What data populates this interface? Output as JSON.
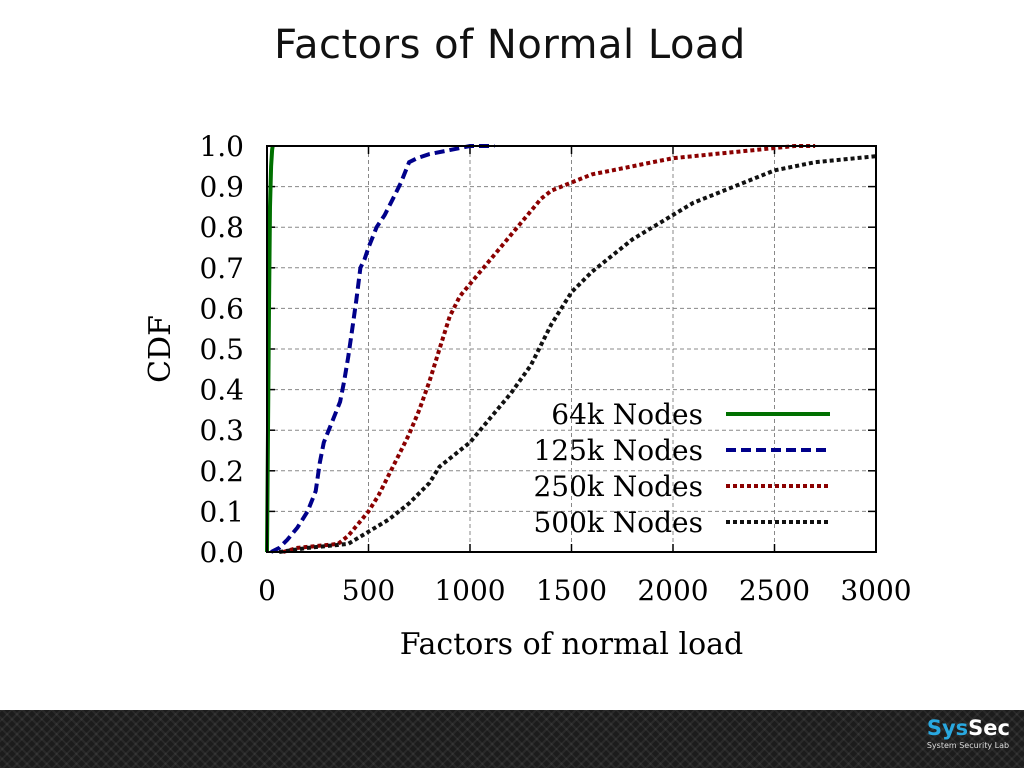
{
  "slide": {
    "title": "Factors of Normal Load"
  },
  "chart_data": {
    "type": "line",
    "title": "",
    "xlabel": "Factors of normal load",
    "ylabel": "CDF",
    "xlim": [
      0,
      3000
    ],
    "ylim": [
      0,
      1.0
    ],
    "x_ticks": [
      0,
      500,
      1000,
      1500,
      2000,
      2500,
      3000
    ],
    "x_tick_labels": [
      "0",
      "500",
      "1000",
      "1500",
      "2000",
      "2500",
      "3000"
    ],
    "y_ticks": [
      0.0,
      0.1,
      0.2,
      0.3,
      0.4,
      0.5,
      0.6,
      0.7,
      0.8,
      0.9,
      1.0
    ],
    "y_tick_labels": [
      "0.0",
      "0.1",
      "0.2",
      "0.3",
      "0.4",
      "0.5",
      "0.6",
      "0.7",
      "0.8",
      "0.9",
      "1.0"
    ],
    "grid": true,
    "legend_position": "bottom-right",
    "series": [
      {
        "name": "64k Nodes",
        "color": "#007000",
        "dash": "solid",
        "x": [
          0,
          5,
          10,
          15,
          20,
          25,
          28
        ],
        "y": [
          0,
          0.3,
          0.6,
          0.85,
          0.95,
          0.99,
          1.0
        ]
      },
      {
        "name": "125k Nodes",
        "color": "#00008b",
        "dash": "dashed",
        "x": [
          20,
          60,
          100,
          150,
          200,
          240,
          260,
          280,
          320,
          360,
          380,
          400,
          420,
          440,
          460,
          480,
          500,
          540,
          580,
          620,
          660,
          700,
          740,
          800,
          900,
          1000,
          1120
        ],
        "y": [
          0,
          0.01,
          0.03,
          0.06,
          0.1,
          0.15,
          0.22,
          0.27,
          0.32,
          0.37,
          0.42,
          0.48,
          0.55,
          0.62,
          0.7,
          0.72,
          0.75,
          0.8,
          0.83,
          0.87,
          0.91,
          0.96,
          0.97,
          0.98,
          0.99,
          1.0,
          1.0
        ]
      },
      {
        "name": "250k Nodes",
        "color": "#8b0000",
        "dash": "dotted",
        "x": [
          80,
          150,
          250,
          350,
          400,
          450,
          500,
          550,
          600,
          650,
          700,
          750,
          800,
          850,
          900,
          950,
          1000,
          1050,
          1100,
          1150,
          1200,
          1250,
          1300,
          1350,
          1400,
          1450,
          1500,
          1600,
          1700,
          1800,
          1900,
          2000,
          2100,
          2200,
          2300,
          2400,
          2500,
          2600,
          2700
        ],
        "y": [
          0,
          0.01,
          0.015,
          0.02,
          0.04,
          0.07,
          0.1,
          0.14,
          0.19,
          0.24,
          0.29,
          0.35,
          0.42,
          0.5,
          0.58,
          0.63,
          0.66,
          0.69,
          0.72,
          0.75,
          0.78,
          0.81,
          0.84,
          0.87,
          0.89,
          0.9,
          0.91,
          0.93,
          0.94,
          0.95,
          0.96,
          0.97,
          0.975,
          0.98,
          0.985,
          0.99,
          0.995,
          1.0,
          1.0
        ]
      },
      {
        "name": "500k Nodes",
        "color": "#111111",
        "dash": "dotted",
        "x": [
          60,
          200,
          400,
          500,
          600,
          700,
          800,
          850,
          900,
          1000,
          1100,
          1200,
          1300,
          1400,
          1500,
          1600,
          1700,
          1800,
          1900,
          2000,
          2100,
          2200,
          2300,
          2400,
          2500,
          2600,
          2700,
          2800,
          2900,
          3000
        ],
        "y": [
          0,
          0.01,
          0.02,
          0.05,
          0.08,
          0.12,
          0.17,
          0.21,
          0.23,
          0.27,
          0.33,
          0.39,
          0.46,
          0.56,
          0.64,
          0.69,
          0.73,
          0.77,
          0.8,
          0.83,
          0.86,
          0.88,
          0.9,
          0.92,
          0.94,
          0.95,
          0.96,
          0.965,
          0.97,
          0.975
        ]
      }
    ]
  },
  "footer": {
    "logo_sys": "Sys",
    "logo_sec": "Sec",
    "logo_subtitle": "System Security Lab"
  }
}
